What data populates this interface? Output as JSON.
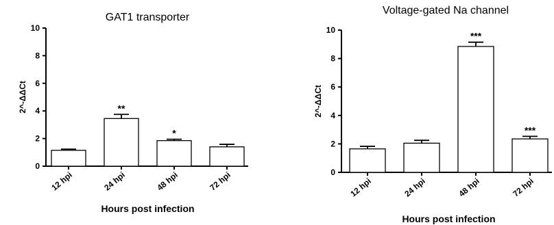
{
  "chart_data": [
    {
      "type": "bar",
      "title": "GAT1 transporter",
      "xlabel": "Hours post infection",
      "ylabel": "2^-ΔΔCt",
      "ylim": [
        0,
        10
      ],
      "yticks": [
        0,
        2,
        4,
        6,
        8,
        10
      ],
      "categories": [
        "12 hpi",
        "24 hpi",
        "48 hpi",
        "72 hpi"
      ],
      "values": [
        1.15,
        3.45,
        1.85,
        1.4
      ],
      "errors": [
        0.08,
        0.3,
        0.1,
        0.18
      ],
      "annotations": [
        "",
        "**",
        "*",
        ""
      ]
    },
    {
      "type": "bar",
      "title": "Voltage-gated Na channel",
      "xlabel": "Hours post infection",
      "ylabel": "2^-ΔΔCt",
      "ylim": [
        0,
        10
      ],
      "yticks": [
        0,
        2,
        4,
        6,
        8,
        10
      ],
      "categories": [
        "12 hpi",
        "24 hpi",
        "48 hpi",
        "72 hpi"
      ],
      "values": [
        1.65,
        2.05,
        8.85,
        2.35
      ],
      "errors": [
        0.18,
        0.2,
        0.3,
        0.18
      ],
      "annotations": [
        "",
        "",
        "***",
        "***"
      ]
    }
  ]
}
